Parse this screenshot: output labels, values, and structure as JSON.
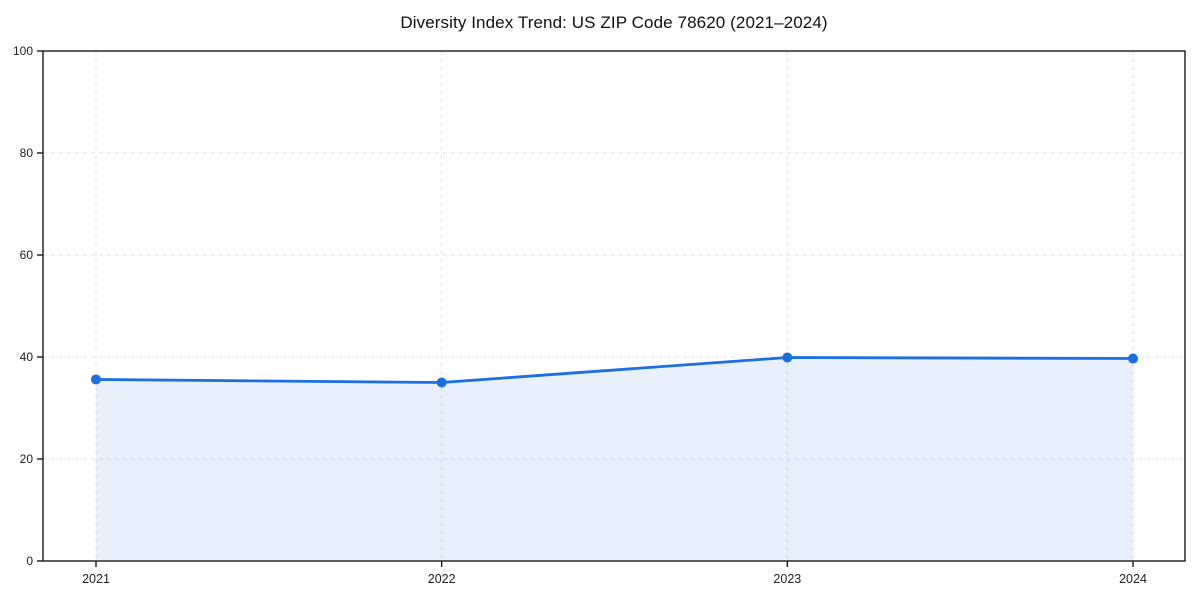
{
  "chart_data": {
    "type": "area",
    "title": "Diversity Index Trend: US ZIP Code 78620 (2021–2024)",
    "categories": [
      "2021",
      "2022",
      "2023",
      "2024"
    ],
    "values": [
      35.6,
      35.0,
      39.9,
      39.7
    ],
    "xlabel": "",
    "ylabel": "",
    "ylim": [
      0,
      100
    ],
    "yticks": [
      0,
      20,
      40,
      60,
      80,
      100
    ],
    "grid": true,
    "grid_style": "dashed",
    "legend_position": "none",
    "line_color": "#1b6ee3",
    "marker": "circle",
    "fill_color": "#1b6ee3",
    "fill_opacity": 0.1,
    "grid_color": "#e2e2e2",
    "axis_color": "#1a1a1a",
    "tick_label_color": "#222222",
    "background": "#ffffff"
  }
}
